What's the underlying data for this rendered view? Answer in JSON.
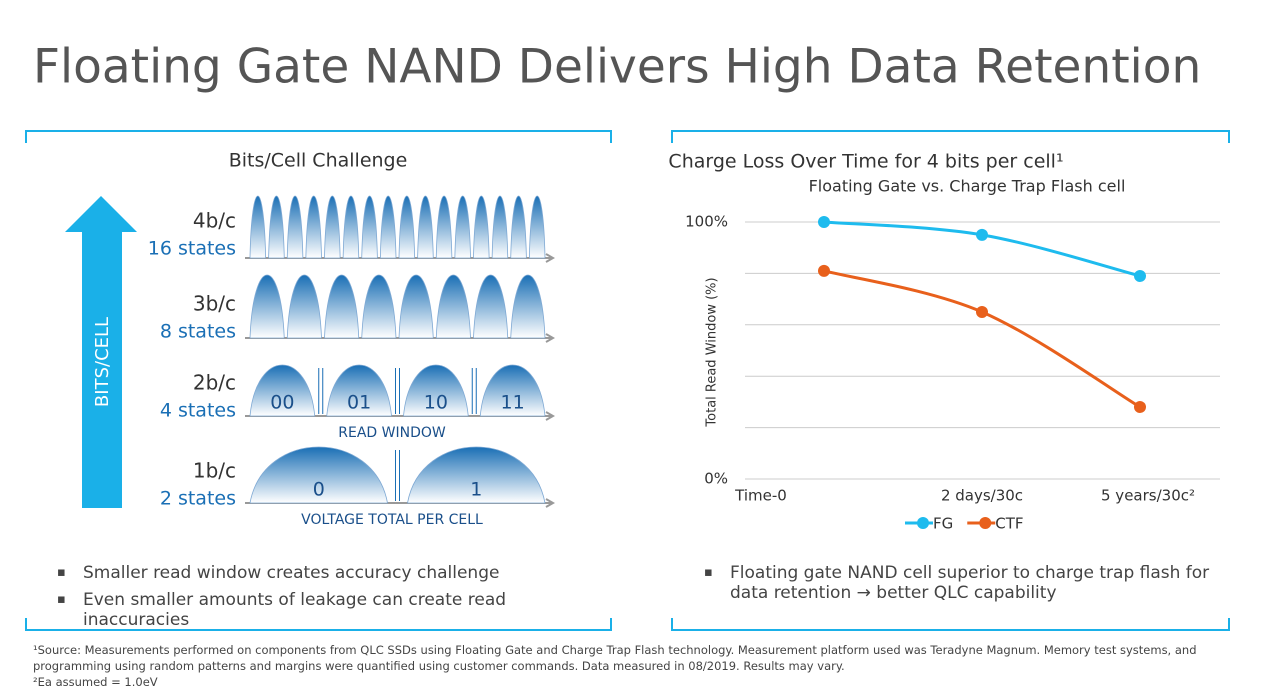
{
  "title": "Floating Gate NAND Delivers High Data Retention",
  "left_panel": {
    "heading": "Bits/Cell Challenge",
    "arrow_label": "BITS/CELL",
    "rows": [
      {
        "bits": "4b/c",
        "states": "16 states"
      },
      {
        "bits": "3b/c",
        "states": "8 states"
      },
      {
        "bits": "2b/c",
        "states": "4 states",
        "state_labels": [
          "00",
          "01",
          "10",
          "11"
        ],
        "caption": "READ WINDOW"
      },
      {
        "bits": "1b/c",
        "states": "2 states",
        "state_labels": [
          "0",
          "1"
        ],
        "caption": "VOLTAGE TOTAL PER CELL"
      }
    ],
    "bullets": [
      "Smaller read window creates accuracy challenge",
      "Even smaller amounts of leakage can create read inaccuracies"
    ]
  },
  "chart_data": {
    "type": "line",
    "title": "Charge Loss Over Time for 4 bits per cell¹",
    "subtitle": "Floating Gate vs. Charge Trap Flash cell",
    "y_label": "Total Read Window (%)",
    "categories": [
      "Time-0",
      "2 days/30c",
      "5 years/30c²"
    ],
    "series": [
      {
        "name": "FG",
        "color": "#1ebbee",
        "values": [
          100,
          95,
          79
        ]
      },
      {
        "name": "CTF",
        "color": "#e8601c",
        "values": [
          81,
          65,
          28
        ]
      }
    ],
    "ylim": [
      0,
      100
    ],
    "yticks": [
      {
        "value": 0,
        "label": "0%"
      },
      {
        "value": 100,
        "label": "100%"
      }
    ],
    "ygrid": [
      0,
      20,
      40,
      60,
      80,
      100
    ],
    "legend": "bottom"
  },
  "right_bullets": [
    "Floating gate NAND cell superior to charge trap flash for data retention → better QLC capability"
  ],
  "footnotes": [
    "¹Source: Measurements performed on components from QLC SSDs using Floating Gate and Charge Trap Flash technology. Measurement platform used was Teradyne Magnum. Memory test systems, and programming using random patterns and margins were quantified using customer commands. Data measured in 08/2019. Results may vary.",
    "²Ea assumed = 1.0eV"
  ]
}
